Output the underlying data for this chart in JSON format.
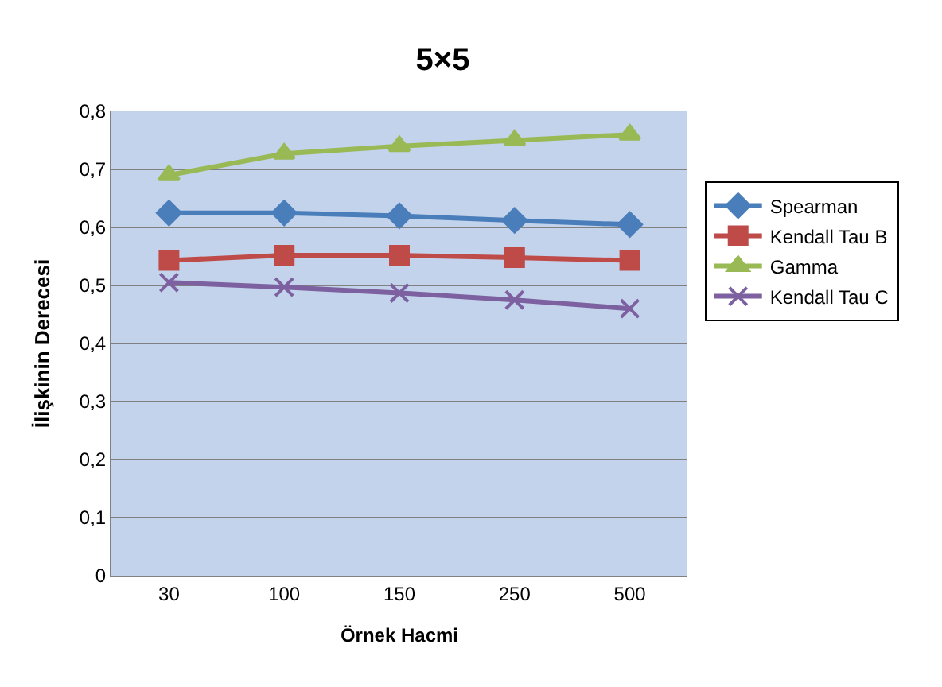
{
  "chart_data": {
    "type": "line",
    "title": "5×5",
    "xlabel": "Örnek Hacmi",
    "ylabel": "İlişkinin Derecesi",
    "categories": [
      "30",
      "100",
      "150",
      "250",
      "500"
    ],
    "series": [
      {
        "name": "Spearman",
        "color": "#4a7ebb",
        "marker": "diamond",
        "values": [
          0.625,
          0.625,
          0.62,
          0.612,
          0.605
        ]
      },
      {
        "name": "Kendall Tau B",
        "color": "#be4b48",
        "marker": "square",
        "values": [
          0.543,
          0.552,
          0.552,
          0.548,
          0.543
        ]
      },
      {
        "name": "Gamma",
        "color": "#98b954",
        "marker": "triangle",
        "values": [
          0.69,
          0.727,
          0.74,
          0.75,
          0.76
        ]
      },
      {
        "name": "Kendall Tau C",
        "color": "#7d60a0",
        "marker": "cross",
        "values": [
          0.505,
          0.497,
          0.487,
          0.475,
          0.46
        ]
      }
    ],
    "ylim": [
      0,
      0.8
    ],
    "yticks": [
      {
        "value": 0,
        "label": "0"
      },
      {
        "value": 0.1,
        "label": "0,1"
      },
      {
        "value": 0.2,
        "label": "0,2"
      },
      {
        "value": 0.3,
        "label": "0,3"
      },
      {
        "value": 0.4,
        "label": "0,4"
      },
      {
        "value": 0.5,
        "label": "0,5"
      },
      {
        "value": 0.6,
        "label": "0,6"
      },
      {
        "value": 0.7,
        "label": "0,7"
      },
      {
        "value": 0.8,
        "label": "0,8"
      }
    ],
    "grid": "y",
    "legend": "right"
  }
}
